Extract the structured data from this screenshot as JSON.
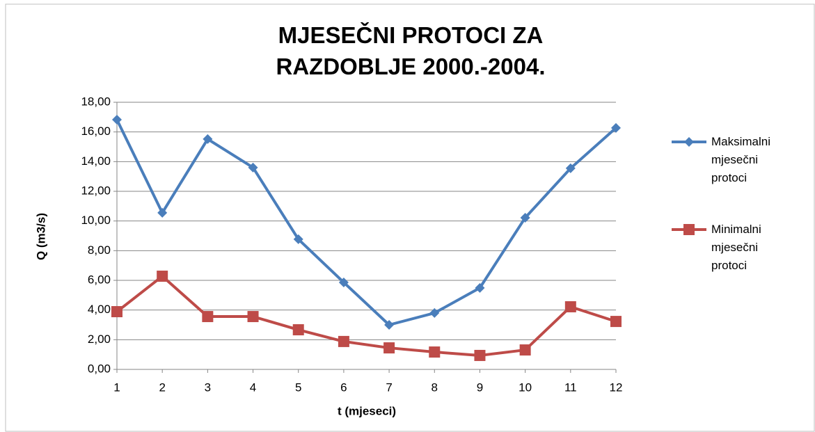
{
  "chart_data": {
    "type": "line",
    "title": "MJESEČNI PROTOCI ZA RAZDOBLJE 2000.-2004.",
    "xlabel": "t (mjeseci)",
    "ylabel": "Q (m3/s)",
    "x": [
      1,
      2,
      3,
      4,
      5,
      6,
      7,
      8,
      9,
      10,
      11,
      12
    ],
    "xlim": [
      1,
      12
    ],
    "xticks": [
      1,
      2,
      3,
      4,
      5,
      6,
      7,
      8,
      9,
      10,
      11,
      12
    ],
    "ylim": [
      0,
      18
    ],
    "yticks": [
      {
        "value": 0,
        "label": "0,00"
      },
      {
        "value": 2,
        "label": "2,00"
      },
      {
        "value": 4,
        "label": "4,00"
      },
      {
        "value": 6,
        "label": "6,00"
      },
      {
        "value": 8,
        "label": "8,00"
      },
      {
        "value": 10,
        "label": "10,00"
      },
      {
        "value": 12,
        "label": "12,00"
      },
      {
        "value": 14,
        "label": "14,00"
      },
      {
        "value": 16,
        "label": "16,00"
      },
      {
        "value": 18,
        "label": "18,00"
      }
    ],
    "grid": true,
    "legend": "right",
    "series": [
      {
        "name": "Maksimalni mjesečni protoci",
        "color": "#4a7ebb",
        "marker": "diamond",
        "values": [
          16.83,
          10.55,
          15.52,
          13.6,
          8.77,
          5.86,
          3.0,
          3.8,
          5.49,
          10.22,
          13.55,
          16.27
        ]
      },
      {
        "name": "Minimalni mjesečni protoci",
        "color": "#be4b48",
        "marker": "square",
        "values": [
          3.89,
          6.28,
          3.56,
          3.56,
          2.67,
          1.88,
          1.45,
          1.17,
          0.94,
          1.31,
          4.22,
          3.23
        ]
      }
    ]
  }
}
